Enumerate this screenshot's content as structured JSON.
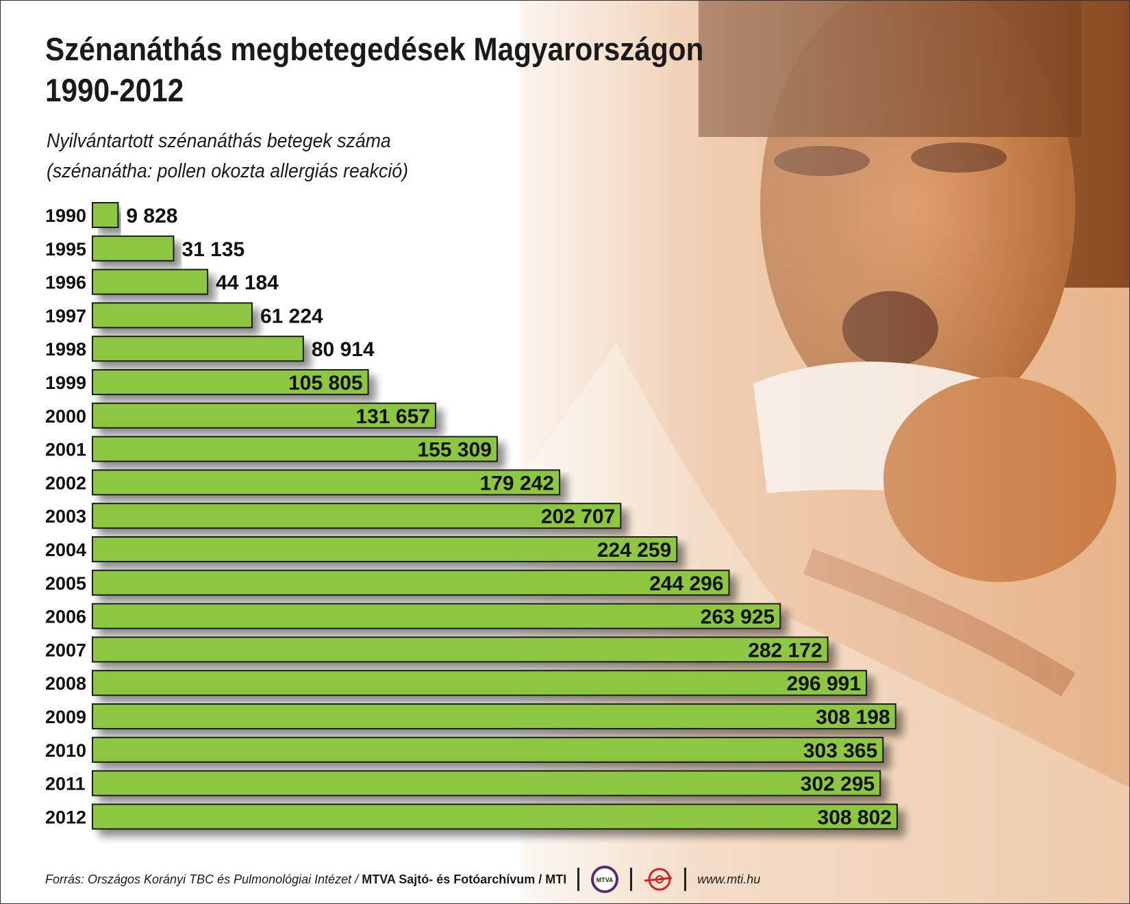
{
  "header": {
    "title_line1": "Szénanáthás megbetegedések Magyarországon",
    "title_line2": "1990-2012",
    "subtitle_line1": "Nyilvántartott szénanáthás betegek száma",
    "subtitle_line2": "(szénanátha: pollen okozta allergiás reakció)"
  },
  "chart_data": {
    "type": "bar",
    "orientation": "horizontal",
    "title": "Szénanáthás megbetegedések Magyarországon 1990-2012",
    "subtitle": "Nyilvántartott szénanáthás betegek száma (szénanátha: pollen okozta allergiás reakció)",
    "categories": [
      "1990",
      "1995",
      "1996",
      "1997",
      "1998",
      "1999",
      "2000",
      "2001",
      "2002",
      "2003",
      "2004",
      "2005",
      "2006",
      "2007",
      "2008",
      "2009",
      "2010",
      "2011",
      "2012"
    ],
    "values": [
      9828,
      31135,
      44184,
      61224,
      80914,
      105805,
      131657,
      155309,
      179242,
      202707,
      224259,
      244296,
      263925,
      282172,
      296991,
      308198,
      303365,
      302295,
      308802
    ],
    "value_labels": [
      "9 828",
      "31 135",
      "44 184",
      "61 224",
      "80 914",
      "105 805",
      "131 657",
      "155 309",
      "179 242",
      "202 707",
      "224 259",
      "244 296",
      "263 925",
      "282 172",
      "296 991",
      "308 198",
      "303 365",
      "302 295",
      "308 802"
    ],
    "bar_color": "#8dc63f",
    "xlim": [
      0,
      308802
    ],
    "grid": false,
    "legend": "none"
  },
  "footer": {
    "source": "Forrás: Országos Korányi TBC és Pulmonológiai Intézet /",
    "org": "MTVA Sajtó- és Fotóarchívum / MTI",
    "mtva_logo": "MTVA",
    "url": "www.mti.hu"
  },
  "colors": {
    "bar_fill": "#8dc63f",
    "bar_stroke": "#1a1a1a",
    "photo_tone": "#b5581a"
  },
  "icons": {
    "mtva_logo": "mtva-logo-icon",
    "mti_logo": "mti-logo-icon"
  }
}
